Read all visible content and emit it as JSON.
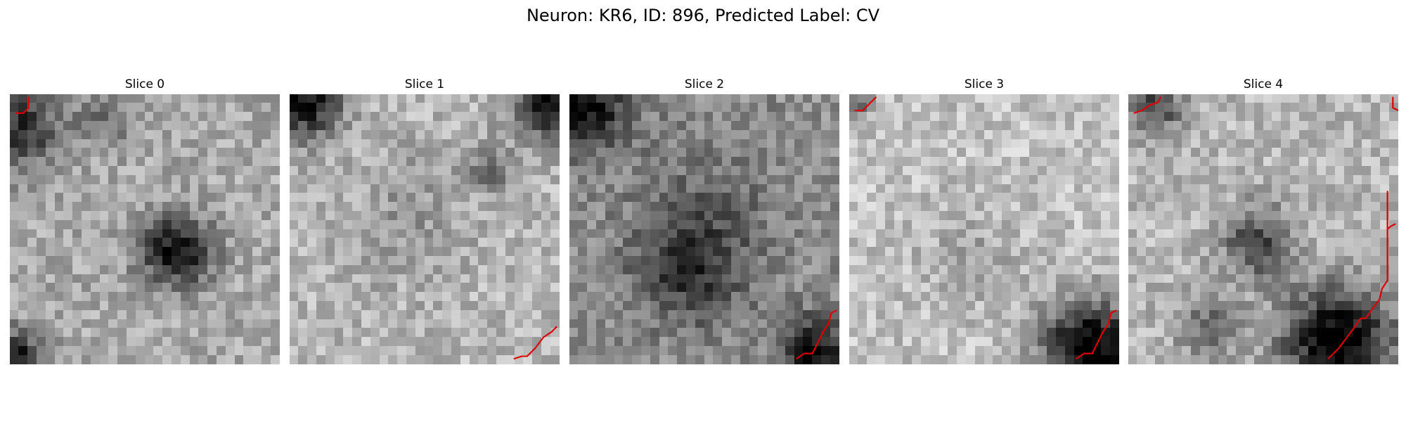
{
  "figure": {
    "title": "Neuron: KR6, ID: 896, Predicted Label: CV"
  },
  "slices": [
    {
      "label": "Slice 0",
      "darkRegions": [
        [
          0.62,
          0.58,
          0.13,
          0.62
        ],
        [
          0.03,
          0.13,
          0.15,
          0.5
        ],
        [
          0.02,
          0.97,
          0.1,
          0.55
        ],
        [
          0.35,
          0.1,
          0.1,
          0.25
        ]
      ],
      "base": 0.66,
      "contour": [
        [
          0.02,
          0.07
        ],
        [
          0.05,
          0.07
        ],
        [
          0.07,
          0.05
        ],
        [
          0.07,
          0.01
        ]
      ]
    },
    {
      "label": "Slice 1",
      "darkRegions": [
        [
          0.05,
          0.02,
          0.14,
          0.7
        ],
        [
          0.97,
          0.02,
          0.14,
          0.7
        ],
        [
          0.75,
          0.28,
          0.08,
          0.3
        ],
        [
          0.45,
          0.45,
          0.25,
          0.12
        ]
      ],
      "base": 0.72,
      "contour": [
        [
          0.83,
          0.98
        ],
        [
          0.86,
          0.97
        ],
        [
          0.88,
          0.97
        ],
        [
          0.91,
          0.94
        ],
        [
          0.94,
          0.9
        ],
        [
          0.97,
          0.88
        ],
        [
          0.99,
          0.86
        ]
      ]
    },
    {
      "label": "Slice 2",
      "darkRegions": [
        [
          0.05,
          0.05,
          0.15,
          0.55
        ],
        [
          0.45,
          0.65,
          0.2,
          0.35
        ],
        [
          0.9,
          0.95,
          0.12,
          0.55
        ],
        [
          0.5,
          0.4,
          0.3,
          0.12
        ]
      ],
      "base": 0.56,
      "contour": [
        [
          0.84,
          0.98
        ],
        [
          0.87,
          0.96
        ],
        [
          0.9,
          0.96
        ],
        [
          0.92,
          0.92
        ],
        [
          0.94,
          0.88
        ],
        [
          0.96,
          0.85
        ],
        [
          0.97,
          0.81
        ],
        [
          0.99,
          0.8
        ]
      ]
    },
    {
      "label": "Slice 3",
      "darkRegions": [
        [
          0.9,
          0.95,
          0.18,
          0.85
        ],
        [
          0.45,
          0.6,
          0.18,
          0.12
        ],
        [
          0.04,
          0.03,
          0.06,
          0.3
        ]
      ],
      "base": 0.76,
      "contour": [
        [
          0.02,
          0.06
        ],
        [
          0.05,
          0.06
        ],
        [
          0.07,
          0.04
        ],
        [
          0.09,
          0.02
        ],
        [
          0.1,
          0.01
        ]
      ],
      "contour2": [
        [
          0.84,
          0.98
        ],
        [
          0.87,
          0.96
        ],
        [
          0.9,
          0.96
        ],
        [
          0.92,
          0.92
        ],
        [
          0.94,
          0.88
        ],
        [
          0.96,
          0.85
        ],
        [
          0.97,
          0.81
        ],
        [
          0.99,
          0.8
        ]
      ]
    },
    {
      "label": "Slice 4",
      "darkRegions": [
        [
          0.48,
          0.55,
          0.13,
          0.45
        ],
        [
          0.78,
          0.92,
          0.2,
          0.8
        ],
        [
          0.1,
          0.05,
          0.1,
          0.45
        ],
        [
          0.3,
          0.85,
          0.12,
          0.3
        ]
      ],
      "base": 0.72,
      "contour": [
        [
          0.02,
          0.07
        ],
        [
          0.05,
          0.06
        ],
        [
          0.08,
          0.04
        ],
        [
          0.11,
          0.03
        ],
        [
          0.12,
          0.01
        ]
      ],
      "contour2": [
        [
          0.98,
          0.01
        ],
        [
          0.98,
          0.05
        ],
        [
          1.0,
          0.06
        ]
      ],
      "contour3": [
        [
          0.74,
          0.98
        ],
        [
          0.78,
          0.94
        ],
        [
          0.81,
          0.9
        ],
        [
          0.84,
          0.86
        ],
        [
          0.86,
          0.83
        ],
        [
          0.88,
          0.83
        ],
        [
          0.9,
          0.8
        ],
        [
          0.93,
          0.76
        ],
        [
          0.94,
          0.72
        ],
        [
          0.96,
          0.69
        ],
        [
          0.96,
          0.64
        ],
        [
          0.96,
          0.6
        ],
        [
          0.96,
          0.56
        ],
        [
          0.96,
          0.52
        ],
        [
          0.96,
          0.48
        ],
        [
          0.96,
          0.44
        ],
        [
          0.96,
          0.4
        ],
        [
          0.96,
          0.36
        ],
        [
          0.96,
          0.52
        ],
        [
          0.96,
          0.5
        ],
        [
          0.97,
          0.49
        ],
        [
          0.99,
          0.48
        ]
      ]
    }
  ],
  "style": {
    "contourColor": "#dd0000"
  }
}
